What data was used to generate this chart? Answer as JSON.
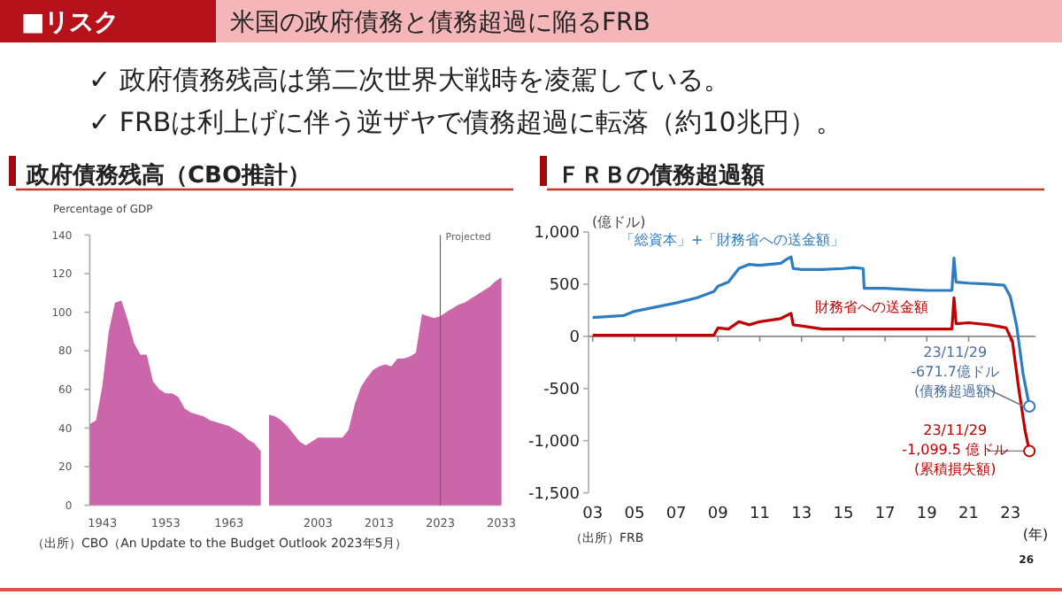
{
  "chart_data": [
    {
      "type": "area",
      "title": "政府債務残高（CBO推計）",
      "ylabel": "Percentage of GDP",
      "color": "#cc66aa",
      "annotations": [
        "■リスク",
        "米国の政府債務と債務超過に陥るFRB",
        "✓ 政府債務残高は第二次世界大戦時を凌駕している。",
        "✓ FRBは利上げに伴う逆ザヤで債務超過に転落（約10兆円）。",
        "（出所）CBO（An Update to the Budget Outlook 2023年5月）"
      ],
      "x": [
        1941,
        1942,
        1943,
        1944,
        1945,
        1946,
        1947,
        1948,
        1949,
        1950,
        1951,
        1952,
        1953,
        1954,
        1955,
        1956,
        1957,
        1958,
        1959,
        1960,
        1961,
        1962,
        1963,
        1964,
        1965,
        1966,
        1967,
        1968
      ],
      "values": [
        42,
        44,
        62,
        90,
        105,
        106,
        96,
        84,
        78,
        78,
        64,
        60,
        58,
        58,
        56,
        50,
        48,
        47,
        46,
        44,
        43,
        42,
        41,
        39,
        37,
        34,
        32,
        28
      ],
      "xlim": [
        1941,
        1968
      ],
      "ylim": [
        0,
        140
      ],
      "xticks": [
        1943,
        1953,
        1963
      ],
      "yticks": [
        0,
        20,
        40,
        60,
        80,
        100,
        120,
        140
      ]
    },
    {
      "type": "area",
      "color": "#cc66aa",
      "tick_labels": "x",
      "x": [
        1995,
        1996,
        1997,
        1998,
        1999,
        2000,
        2001,
        2002,
        2003,
        2004,
        2005,
        2006,
        2007,
        2008,
        2009,
        2010,
        2011,
        2012,
        2013,
        2014,
        2015,
        2016,
        2017,
        2018,
        2019,
        2020,
        2021,
        2022,
        2023,
        2024,
        2025,
        2026,
        2027,
        2028,
        2029,
        2030,
        2031,
        2032,
        2033
      ],
      "values": [
        47,
        46,
        44,
        41,
        37,
        33,
        31,
        33,
        35,
        35,
        35,
        35,
        35,
        39,
        52,
        61,
        66,
        70,
        72,
        73,
        72,
        76,
        76,
        77,
        79,
        99,
        98,
        97,
        98,
        100,
        102,
        104,
        105,
        107,
        109,
        111,
        113,
        116,
        118
      ],
      "xlim": [
        1995,
        2033
      ],
      "ylim": [
        0,
        140
      ],
      "xticks": [
        2003,
        2013,
        2023,
        2033
      ],
      "ref_lines": [
        {
          "axis": "x",
          "value": 2023,
          "label": "Projected",
          "color": "#666666"
        }
      ]
    },
    {
      "type": "line",
      "title": "ＦＲＢの債務超過額",
      "xlabel": "(年)",
      "ylabel": "(億ドル)",
      "xlim": [
        2002.8,
        2024.2
      ],
      "ylim": [
        -1500,
        1000
      ],
      "xticks": [
        {
          "value": 2003,
          "label": "03"
        },
        {
          "value": 2005,
          "label": "05"
        },
        {
          "value": 2007,
          "label": "07"
        },
        {
          "value": 2009,
          "label": "09"
        },
        {
          "value": 2011,
          "label": "11"
        },
        {
          "value": 2013,
          "label": "13"
        },
        {
          "value": 2015,
          "label": "15"
        },
        {
          "value": 2017,
          "label": "17"
        },
        {
          "value": 2019,
          "label": "19"
        },
        {
          "value": 2021,
          "label": "21"
        },
        {
          "value": 2023,
          "label": "23"
        }
      ],
      "yticks": [
        {
          "value": 1000,
          "label": "1,000"
        },
        500,
        0,
        -500,
        {
          "value": -1000,
          "label": "-1,000"
        },
        {
          "value": -1500,
          "label": "-1,500"
        }
      ],
      "series": [
        {
          "name": "「総資本」+「財務省への送金額」",
          "color": "#2e7dc2",
          "x": [
            2003,
            2004.5,
            2005,
            2006,
            2007,
            2008,
            2008.8,
            2009,
            2009.5,
            2010,
            2010.5,
            2011,
            2012,
            2012.3,
            2012.5,
            2012.6,
            2013,
            2014,
            2015,
            2015.5,
            2015.95,
            2016,
            2017,
            2018,
            2019,
            2020.2,
            2020.3,
            2020.4,
            2021,
            2022,
            2022.7,
            2023,
            2023.3,
            2023.6,
            2023.91
          ],
          "values": [
            180,
            200,
            240,
            280,
            320,
            370,
            430,
            480,
            520,
            650,
            690,
            680,
            700,
            740,
            760,
            650,
            640,
            640,
            650,
            660,
            650,
            460,
            460,
            450,
            440,
            440,
            750,
            520,
            510,
            500,
            490,
            380,
            100,
            -350,
            -671.7
          ]
        },
        {
          "name": "財務省への送金額",
          "color": "#c00000",
          "x": [
            2003,
            2008.8,
            2009,
            2009.5,
            2010,
            2010.5,
            2011,
            2012,
            2012.5,
            2012.6,
            2013,
            2014,
            2015,
            2016,
            2018,
            2020.2,
            2020.3,
            2020.4,
            2021,
            2022,
            2022.8,
            2023.1,
            2023.4,
            2023.7,
            2023.91
          ],
          "values": [
            10,
            10,
            80,
            70,
            140,
            110,
            140,
            170,
            220,
            110,
            100,
            70,
            70,
            70,
            70,
            70,
            370,
            120,
            130,
            110,
            80,
            -50,
            -500,
            -900,
            -1099.5
          ]
        }
      ],
      "annotations": [
        {
          "text": "23/11/29\n-671.7億ドル\n(債務超過額)",
          "x": 2023.91,
          "y": -671.7
        },
        {
          "text": "23/11/29\n-1,099.5 億ドル\n(累積損失額)",
          "x": 2023.91,
          "y": -1099.5
        },
        "（出所）FRB",
        "26"
      ]
    }
  ]
}
